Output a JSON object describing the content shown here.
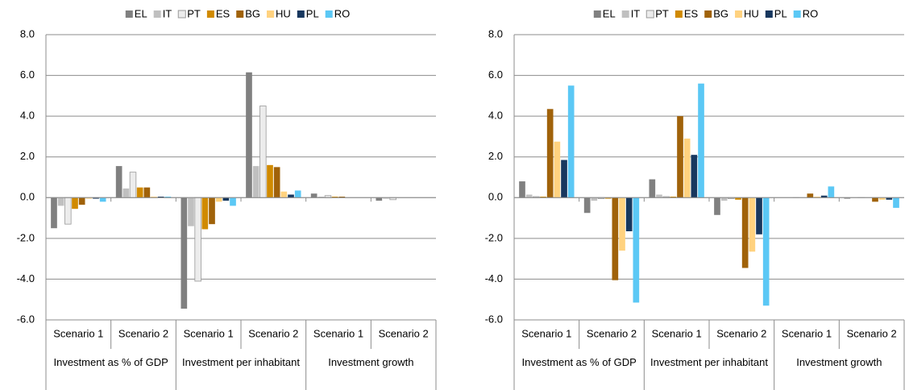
{
  "chart_data": [
    {
      "type": "bar",
      "categories": [
        "Scenario 1",
        "Scenario 2",
        "Scenario 1",
        "Scenario 2",
        "Scenario 1",
        "Scenario 2"
      ],
      "category_groups": [
        "Investment as % of GDP",
        "Investment per inhabitant",
        "Investment growth"
      ],
      "ylim": [
        -6,
        8
      ],
      "yticks": [
        {
          "value": -6,
          "label": "-6.0"
        },
        {
          "value": -4,
          "label": "-4.0"
        },
        {
          "value": -2,
          "label": "-2.0"
        },
        {
          "value": 0,
          "label": "0.0"
        },
        {
          "value": 2,
          "label": "2.0"
        },
        {
          "value": 4,
          "label": "4.0"
        },
        {
          "value": 6,
          "label": "6.0"
        },
        {
          "value": 8,
          "label": "8.0"
        }
      ],
      "grid": true,
      "legend": "top",
      "series": [
        {
          "name": "EL",
          "color": "#808080",
          "values": [
            -1.5,
            1.55,
            -5.45,
            6.15,
            0.2,
            -0.15
          ]
        },
        {
          "name": "IT",
          "color": "#c0c0c0",
          "values": [
            -0.4,
            0.45,
            -1.4,
            1.55,
            0.05,
            -0.05
          ]
        },
        {
          "name": "PT",
          "color": "#ececec",
          "values": [
            -1.3,
            1.25,
            -4.1,
            4.5,
            0.1,
            -0.1
          ]
        },
        {
          "name": "ES",
          "color": "#d08a00",
          "values": [
            -0.55,
            0.5,
            -1.55,
            1.6,
            0.05,
            0
          ]
        },
        {
          "name": "BG",
          "color": "#a0620a",
          "values": [
            -0.35,
            0.5,
            -1.3,
            1.5,
            0.05,
            0
          ]
        },
        {
          "name": "HU",
          "color": "#ffd27f",
          "values": [
            -0.05,
            0.05,
            -0.2,
            0.3,
            0,
            0
          ]
        },
        {
          "name": "PL",
          "color": "#17375e",
          "values": [
            -0.05,
            0.05,
            -0.15,
            0.15,
            0,
            0
          ]
        },
        {
          "name": "RO",
          "color": "#5bc8f5",
          "values": [
            -0.2,
            0.05,
            -0.4,
            0.35,
            0,
            0
          ]
        }
      ]
    },
    {
      "type": "bar",
      "categories": [
        "Scenario 1",
        "Scenario 2",
        "Scenario 1",
        "Scenario 2",
        "Scenario 1",
        "Scenario 2"
      ],
      "category_groups": [
        "Investment as % of GDP",
        "Investment per inhabitant",
        "Investment growth"
      ],
      "ylim": [
        -6,
        8
      ],
      "yticks": [
        {
          "value": -6,
          "label": "-6.0"
        },
        {
          "value": -4,
          "label": "-4.0"
        },
        {
          "value": -2,
          "label": "-2.0"
        },
        {
          "value": 0,
          "label": "0.0"
        },
        {
          "value": 2,
          "label": "2.0"
        },
        {
          "value": 4,
          "label": "4.0"
        },
        {
          "value": 6,
          "label": "6.0"
        },
        {
          "value": 8,
          "label": "8.0"
        }
      ],
      "grid": true,
      "legend": "top",
      "series": [
        {
          "name": "EL",
          "color": "#808080",
          "values": [
            0.8,
            -0.75,
            0.9,
            -0.85,
            0,
            -0.05
          ]
        },
        {
          "name": "IT",
          "color": "#c0c0c0",
          "values": [
            0.15,
            -0.15,
            0.15,
            -0.15,
            0,
            0
          ]
        },
        {
          "name": "PT",
          "color": "#ececec",
          "values": [
            0.05,
            -0.05,
            0.05,
            -0.05,
            0,
            0
          ]
        },
        {
          "name": "ES",
          "color": "#d08a00",
          "values": [
            0.05,
            -0.05,
            0.05,
            -0.1,
            0,
            0
          ]
        },
        {
          "name": "BG",
          "color": "#a0620a",
          "values": [
            4.35,
            -4.05,
            4.0,
            -3.45,
            0.2,
            -0.2
          ]
        },
        {
          "name": "HU",
          "color": "#ffd27f",
          "values": [
            2.75,
            -2.6,
            2.9,
            -2.65,
            0.05,
            -0.1
          ]
        },
        {
          "name": "PL",
          "color": "#17375e",
          "values": [
            1.85,
            -1.65,
            2.1,
            -1.8,
            0.1,
            -0.1
          ]
        },
        {
          "name": "RO",
          "color": "#5bc8f5",
          "values": [
            5.5,
            -5.15,
            5.6,
            -5.3,
            0.55,
            -0.5
          ]
        }
      ]
    }
  ]
}
